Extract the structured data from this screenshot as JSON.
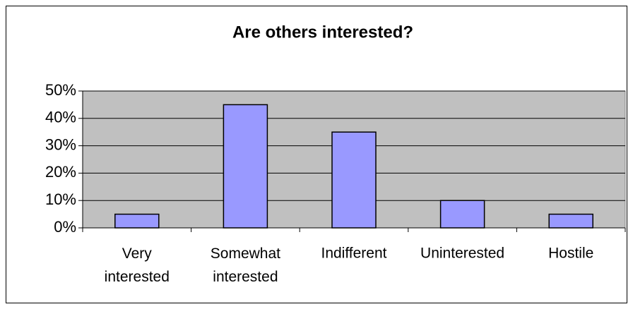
{
  "chart_data": {
    "type": "bar",
    "title": "Are others interested?",
    "categories": [
      "Very interested",
      "Somewhat interested",
      "Indifferent",
      "Uninterested",
      "Hostile"
    ],
    "values": [
      5,
      45,
      35,
      10,
      5
    ],
    "color": "#9999ff",
    "ylim": [
      0,
      50
    ],
    "yticks": [
      {
        "value": 0,
        "label": "0%"
      },
      {
        "value": 10,
        "label": "10%"
      },
      {
        "value": 20,
        "label": "20%"
      },
      {
        "value": 30,
        "label": "30%"
      },
      {
        "value": 40,
        "label": "40%"
      },
      {
        "value": 50,
        "label": "50%"
      }
    ],
    "grid": true
  }
}
